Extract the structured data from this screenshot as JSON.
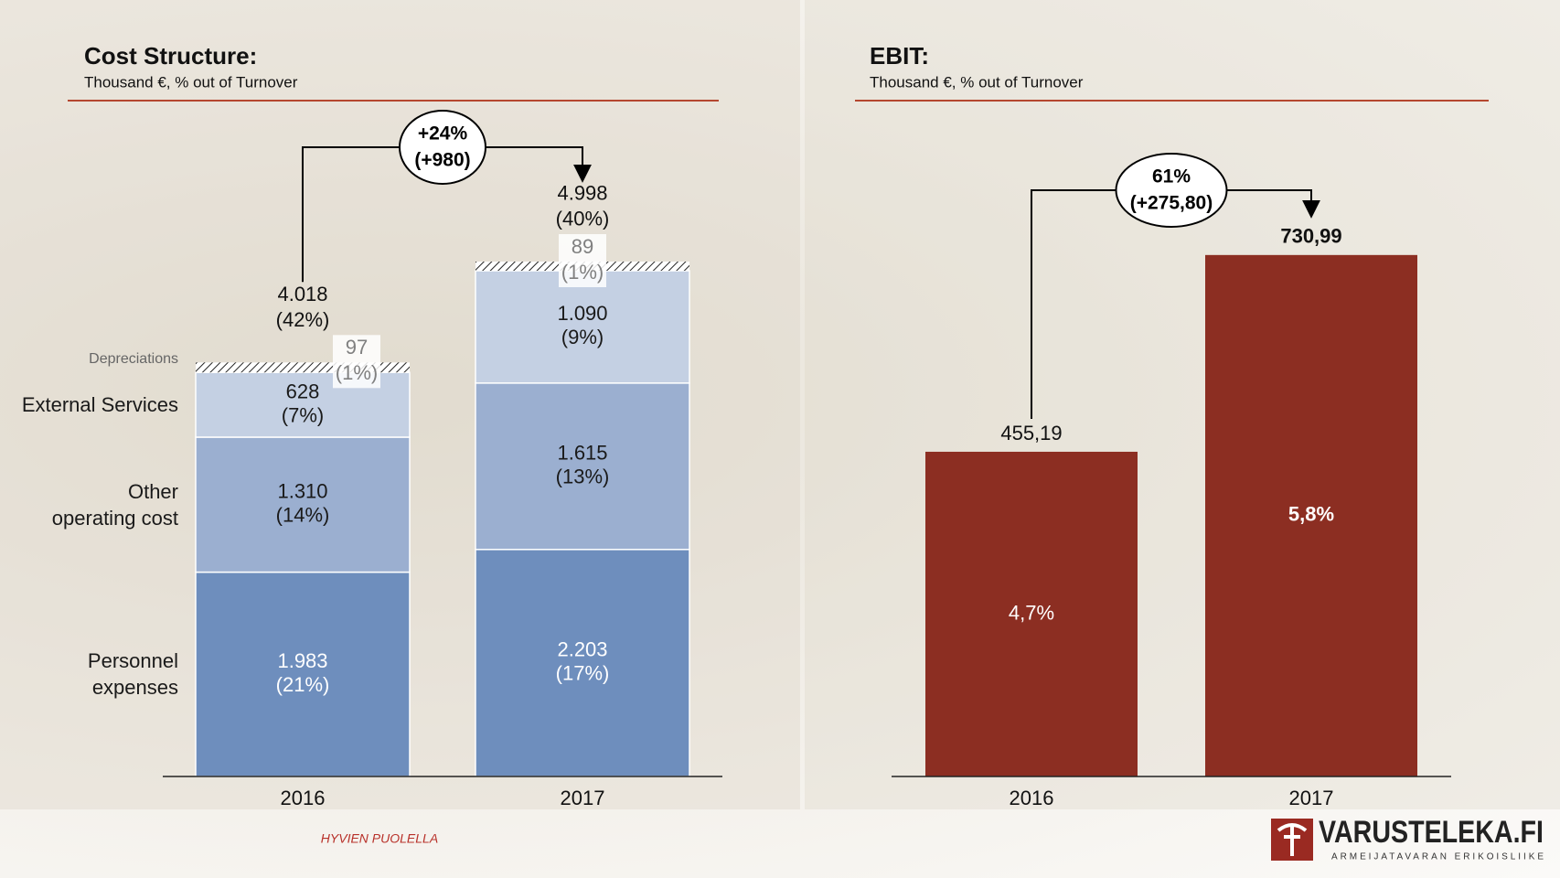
{
  "chart_data": [
    {
      "type": "stacked_bar",
      "title": "Cost Structure:",
      "subtitle": "Thousand €, % out of Turnover",
      "categories": [
        "2016",
        "2017"
      ],
      "ylim": [
        0,
        6000
      ],
      "series": [
        {
          "name": "Personnel expenses",
          "color": "#6e8ebd",
          "label_color": "#ffffff",
          "values": [
            1983,
            2203
          ],
          "value_labels": [
            "1.983",
            "2.203"
          ],
          "percent_labels": [
            "(21%)",
            "(17%)"
          ]
        },
        {
          "name": "Other operating cost",
          "color": "#9bafd0",
          "label_color": "#1a1a1a",
          "values": [
            1310,
            1615
          ],
          "value_labels": [
            "1.310",
            "1.615"
          ],
          "percent_labels": [
            "(14%)",
            "(13%)"
          ]
        },
        {
          "name": "External Services",
          "color": "#c4d0e3",
          "label_color": "#1a1a1a",
          "values": [
            628,
            1090
          ],
          "value_labels": [
            "628",
            "1.090"
          ],
          "percent_labels": [
            "(7%)",
            "(9%)"
          ]
        },
        {
          "name": "Depreciations",
          "color": "#ffffff",
          "pattern": "hatch",
          "label_color": "#808080",
          "values": [
            97,
            89
          ],
          "value_labels": [
            "97",
            "89"
          ],
          "percent_labels": [
            "(1%)",
            "(1%)"
          ]
        }
      ],
      "totals": {
        "values": [
          4018,
          4998
        ],
        "value_labels": [
          "4.018",
          "4.998"
        ],
        "percent_labels": [
          "(42%)",
          "(40%)"
        ]
      },
      "change": {
        "label": "+24%",
        "delta_label": "(+980)"
      }
    },
    {
      "type": "bar",
      "title": "EBIT:",
      "subtitle": "Thousand €, % out of Turnover",
      "categories": [
        "2016",
        "2017"
      ],
      "ylim": [
        0,
        850
      ],
      "color": "#8c2e22",
      "values": [
        455.19,
        730.99
      ],
      "value_labels": [
        "455,19",
        "730,99"
      ],
      "percent_labels": [
        "4,7%",
        "5,8%"
      ],
      "change": {
        "label": "61%",
        "delta_label": "(+275,80)"
      }
    }
  ],
  "footer": {
    "text": "HYVIEN PUOLELLA",
    "logo": "VARUSTELEKA.FI",
    "logo_tagline": "ARMEIJATAVARAN ERIKOISLIIKE"
  }
}
